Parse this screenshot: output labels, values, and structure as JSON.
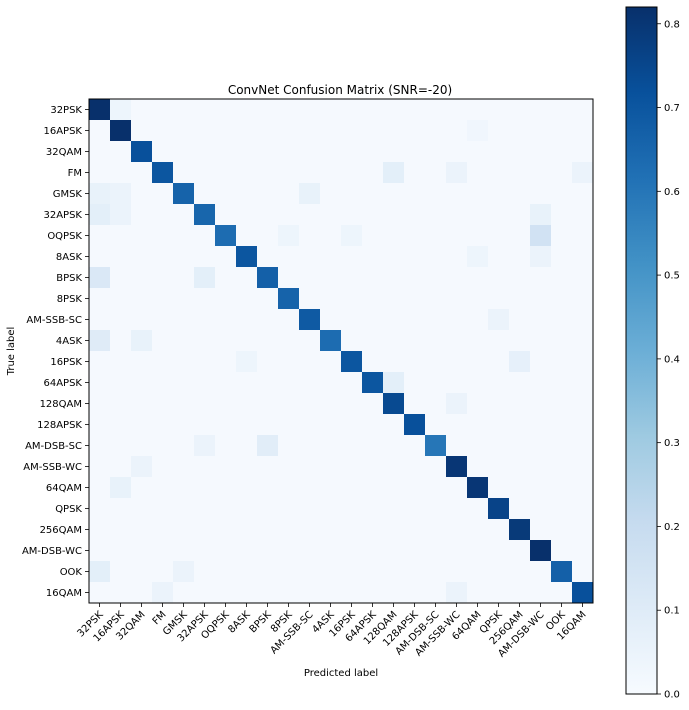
{
  "chart_data": {
    "type": "heatmap",
    "title": "ConvNet Confusion Matrix (SNR=-20)",
    "xlabel": "Predicted label",
    "ylabel": "True label",
    "labels": [
      "32PSK",
      "16APSK",
      "32QAM",
      "FM",
      "GMSK",
      "32APSK",
      "OQPSK",
      "8ASK",
      "BPSK",
      "8PSK",
      "AM-SSB-SC",
      "4ASK",
      "16PSK",
      "64APSK",
      "128QAM",
      "128APSK",
      "AM-DSB-SC",
      "AM-SSB-WC",
      "64QAM",
      "QPSK",
      "256QAM",
      "AM-DSB-WC",
      "OOK",
      "16QAM"
    ],
    "diagonal": [
      0.82,
      0.82,
      0.72,
      0.7,
      0.66,
      0.65,
      0.63,
      0.7,
      0.67,
      0.66,
      0.69,
      0.63,
      0.7,
      0.7,
      0.74,
      0.72,
      0.6,
      0.8,
      0.8,
      0.76,
      0.79,
      0.82,
      0.67,
      0.72
    ],
    "off_diagonal_highlights": [
      {
        "row": "32PSK",
        "col": "16APSK",
        "value": 0.04
      },
      {
        "row": "16APSK",
        "col": "64QAM",
        "value": 0.03
      },
      {
        "row": "FM",
        "col": "128QAM",
        "value": 0.08
      },
      {
        "row": "FM",
        "col": "AM-SSB-WC",
        "value": 0.05
      },
      {
        "row": "FM",
        "col": "16QAM",
        "value": 0.05
      },
      {
        "row": "GMSK",
        "col": "32PSK",
        "value": 0.06
      },
      {
        "row": "GMSK",
        "col": "16APSK",
        "value": 0.05
      },
      {
        "row": "GMSK",
        "col": "AM-SSB-SC",
        "value": 0.06
      },
      {
        "row": "32APSK",
        "col": "32PSK",
        "value": 0.08
      },
      {
        "row": "32APSK",
        "col": "16APSK",
        "value": 0.05
      },
      {
        "row": "32APSK",
        "col": "AM-DSB-WC",
        "value": 0.06
      },
      {
        "row": "OQPSK",
        "col": "AM-DSB-WC",
        "value": 0.16
      },
      {
        "row": "OQPSK",
        "col": "8PSK",
        "value": 0.04
      },
      {
        "row": "OQPSK",
        "col": "16PSK",
        "value": 0.04
      },
      {
        "row": "8ASK",
        "col": "64QAM",
        "value": 0.04
      },
      {
        "row": "8ASK",
        "col": "AM-DSB-WC",
        "value": 0.05
      },
      {
        "row": "BPSK",
        "col": "32PSK",
        "value": 0.12
      },
      {
        "row": "BPSK",
        "col": "32APSK",
        "value": 0.08
      },
      {
        "row": "AM-SSB-SC",
        "col": "QPSK",
        "value": 0.05
      },
      {
        "row": "4ASK",
        "col": "32PSK",
        "value": 0.1
      },
      {
        "row": "4ASK",
        "col": "32QAM",
        "value": 0.06
      },
      {
        "row": "16PSK",
        "col": "256QAM",
        "value": 0.07
      },
      {
        "row": "16PSK",
        "col": "8ASK",
        "value": 0.04
      },
      {
        "row": "64APSK",
        "col": "128QAM",
        "value": 0.08
      },
      {
        "row": "128QAM",
        "col": "AM-SSB-WC",
        "value": 0.05
      },
      {
        "row": "AM-DSB-SC",
        "col": "BPSK",
        "value": 0.09
      },
      {
        "row": "AM-DSB-SC",
        "col": "32APSK",
        "value": 0.05
      },
      {
        "row": "AM-SSB-WC",
        "col": "32QAM",
        "value": 0.05
      },
      {
        "row": "64QAM",
        "col": "16APSK",
        "value": 0.06
      },
      {
        "row": "OOK",
        "col": "32PSK",
        "value": 0.08
      },
      {
        "row": "OOK",
        "col": "GMSK",
        "value": 0.05
      },
      {
        "row": "16QAM",
        "col": "FM",
        "value": 0.05
      },
      {
        "row": "16QAM",
        "col": "AM-SSB-WC",
        "value": 0.05
      }
    ],
    "background_value": 0.01,
    "colorbar": {
      "min": 0.0,
      "max": 0.82,
      "ticks": [
        0.0,
        0.1,
        0.2,
        0.3,
        0.4,
        0.5,
        0.6,
        0.7,
        0.8
      ],
      "tick_labels": [
        "0.0",
        "0.1",
        "0.2",
        "0.3",
        "0.4",
        "0.5",
        "0.6",
        "0.7",
        "0.8"
      ]
    },
    "colormap": "Blues",
    "colormap_stops": [
      "#f7fbff",
      "#deebf7",
      "#c6dbef",
      "#9ecae1",
      "#6baed6",
      "#4292c6",
      "#2171b5",
      "#08519c",
      "#08306b"
    ]
  }
}
